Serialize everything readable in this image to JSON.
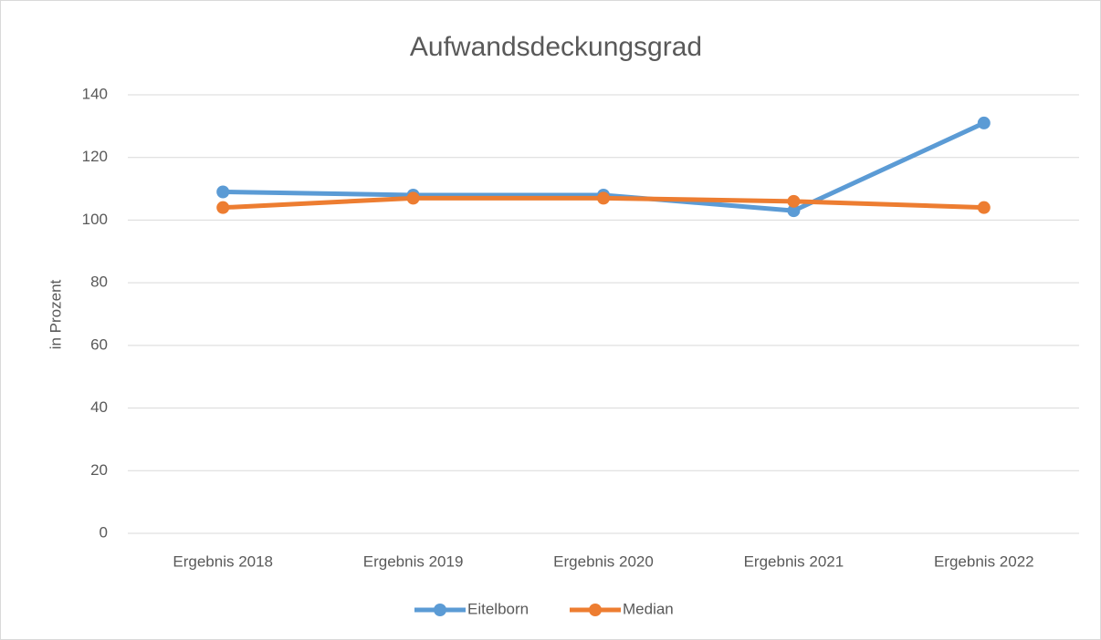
{
  "chart_data": {
    "type": "line",
    "title": "Aufwandsdeckungsgrad",
    "y_label": "in Prozent",
    "categories": [
      "Ergebnis 2018",
      "Ergebnis 2019",
      "Ergebnis 2020",
      "Ergebnis 2021",
      "Ergebnis 2022"
    ],
    "series": [
      {
        "name": "Eitelborn",
        "color": "#5b9bd5",
        "values": [
          109,
          108,
          108,
          103,
          131
        ]
      },
      {
        "name": "Median",
        "color": "#ed7d31",
        "values": [
          104,
          107,
          107,
          106,
          104
        ]
      }
    ],
    "ylim": [
      0,
      140
    ],
    "yticks": [
      0,
      20,
      40,
      60,
      80,
      100,
      120,
      140
    ],
    "grid": true,
    "legend": "bottom"
  }
}
